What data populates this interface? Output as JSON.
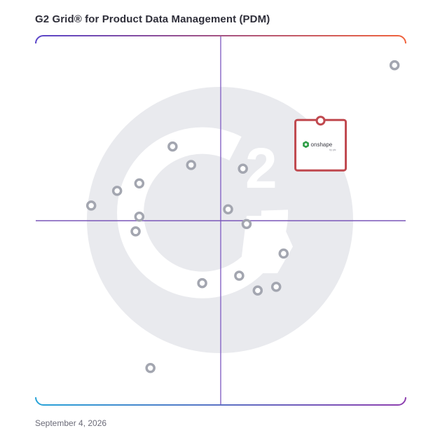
{
  "title": "G2 Grid® for Product Data Management (PDM)",
  "date": "September 4, 2026",
  "watermark": {
    "text": "2",
    "color": "#e9eaee"
  },
  "colors": {
    "border_top_left": "#5a45c9",
    "border_top_right": "#f0623c",
    "border_bottom_left": "#27a3d8",
    "border_bottom_right": "#8e3fb0",
    "divider_vertical": "#8e6ec9",
    "divider_horizontal": "#7a57b8",
    "dot": "#a3a6b0",
    "highlight": "#c0494f",
    "logo_green": "#2e9e46"
  },
  "chart_data": {
    "type": "scatter",
    "title": "G2 Grid® for Product Data Management (PDM)",
    "xlabel": "",
    "ylabel": "",
    "xlim": [
      0,
      1
    ],
    "ylim": [
      0,
      1
    ],
    "grid": "quadrants",
    "points": [
      {
        "x": 0.97,
        "y": 0.92
      },
      {
        "x": 0.37,
        "y": 0.7
      },
      {
        "x": 0.42,
        "y": 0.65
      },
      {
        "x": 0.56,
        "y": 0.64
      },
      {
        "x": 0.28,
        "y": 0.6
      },
      {
        "x": 0.22,
        "y": 0.58
      },
      {
        "x": 0.15,
        "y": 0.54
      },
      {
        "x": 0.52,
        "y": 0.53
      },
      {
        "x": 0.28,
        "y": 0.51
      },
      {
        "x": 0.57,
        "y": 0.49
      },
      {
        "x": 0.27,
        "y": 0.47
      },
      {
        "x": 0.67,
        "y": 0.41
      },
      {
        "x": 0.55,
        "y": 0.35
      },
      {
        "x": 0.45,
        "y": 0.33
      },
      {
        "x": 0.65,
        "y": 0.32
      },
      {
        "x": 0.6,
        "y": 0.31
      },
      {
        "x": 0.31,
        "y": 0.1
      }
    ],
    "highlight": {
      "x": 0.77,
      "y": 0.77,
      "logo_text": "onshape",
      "logo_subtext": "by ptc"
    }
  }
}
